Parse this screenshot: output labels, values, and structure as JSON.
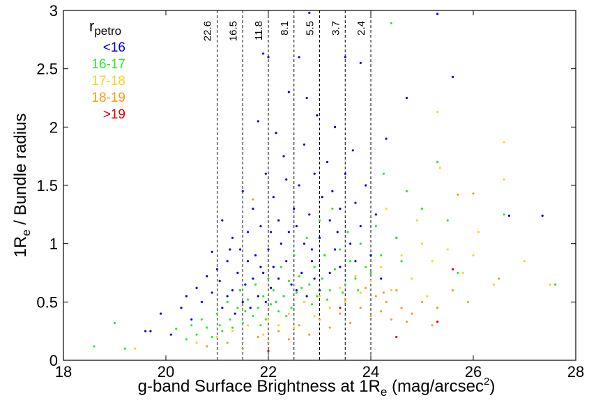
{
  "chart_data": {
    "type": "scatter",
    "title": "",
    "xlabel": {
      "prefix": "g-band Surface Brightness at 1R",
      "subscript": "e",
      "middle": " (mag/arcsec",
      "superscript": "2",
      "suffix": ")"
    },
    "ylabel": {
      "prefix": "1R",
      "subscript": "e",
      "suffix": " / Bundle radius"
    },
    "xlim": [
      18,
      28
    ],
    "ylim": [
      0,
      3
    ],
    "x_ticks": [
      18,
      20,
      22,
      24,
      26,
      28
    ],
    "x_tick_labels": [
      "18",
      "20",
      "22",
      "24",
      "26",
      "28"
    ],
    "y_ticks": [
      0,
      0.5,
      1,
      1.5,
      2,
      2.5,
      3
    ],
    "y_tick_labels": [
      "0",
      "0.5",
      "1",
      "1.5",
      "2",
      "2.5",
      "3"
    ],
    "grid": false,
    "legend": {
      "placement": "top-left",
      "title_main": "r",
      "title_sub": "petro",
      "entries": [
        {
          "label": "<16",
          "color": "#0000dd"
        },
        {
          "label": "16-17",
          "color": "#22ee22"
        },
        {
          "label": "17-18",
          "color": "#ffd21e"
        },
        {
          "label": "18-19",
          "color": "#ff9a14"
        },
        {
          "label": ">19",
          "color": "#dd0000"
        }
      ]
    },
    "vertical_lines": [
      {
        "x": 21.0,
        "label": "22.6"
      },
      {
        "x": 21.5,
        "label": "16.5"
      },
      {
        "x": 22.0,
        "label": "11.8"
      },
      {
        "x": 22.5,
        "label": "8.1"
      },
      {
        "x": 23.0,
        "label": "5.5"
      },
      {
        "x": 23.5,
        "label": "3.7"
      },
      {
        "x": 24.0,
        "label": "2.4"
      }
    ],
    "series": [
      {
        "name": "<16",
        "color": "#0000dd",
        "points": [
          [
            19.6,
            0.25
          ],
          [
            19.7,
            0.25
          ],
          [
            19.9,
            0.4
          ],
          [
            20.1,
            0.22
          ],
          [
            20.3,
            0.45
          ],
          [
            20.4,
            0.55
          ],
          [
            20.5,
            0.35
          ],
          [
            20.6,
            0.62
          ],
          [
            20.7,
            0.5
          ],
          [
            20.8,
            0.72
          ],
          [
            20.9,
            0.93
          ],
          [
            20.9,
            0.58
          ],
          [
            21.0,
            0.78
          ],
          [
            21.05,
            0.68
          ],
          [
            21.1,
            0.45
          ],
          [
            21.1,
            1.2
          ],
          [
            21.2,
            0.55
          ],
          [
            21.2,
            0.85
          ],
          [
            21.3,
            0.6
          ],
          [
            21.3,
            1.05
          ],
          [
            21.35,
            0.4
          ],
          [
            21.4,
            0.75
          ],
          [
            21.45,
            0.95
          ],
          [
            21.5,
            0.5
          ],
          [
            21.5,
            1.45
          ],
          [
            21.55,
            0.65
          ],
          [
            21.6,
            0.85
          ],
          [
            21.6,
            1.1
          ],
          [
            21.65,
            0.45
          ],
          [
            21.7,
            0.7
          ],
          [
            21.7,
            1.3
          ],
          [
            21.75,
            0.9
          ],
          [
            21.8,
            0.55
          ],
          [
            21.8,
            2.05
          ],
          [
            21.85,
            1.15
          ],
          [
            21.9,
            0.75
          ],
          [
            21.9,
            2.63
          ],
          [
            21.95,
            0.5
          ],
          [
            21.95,
            1.6
          ],
          [
            22.0,
            2.6
          ],
          [
            22.0,
            0.95
          ],
          [
            22.05,
            0.62
          ],
          [
            22.1,
            1.4
          ],
          [
            22.1,
            0.8
          ],
          [
            22.15,
            0.5
          ],
          [
            22.2,
            1.2
          ],
          [
            22.2,
            0.7
          ],
          [
            22.25,
            1.0
          ],
          [
            22.3,
            1.75
          ],
          [
            22.3,
            0.55
          ],
          [
            22.35,
            0.85
          ],
          [
            22.4,
            2.3
          ],
          [
            22.4,
            1.1
          ],
          [
            22.45,
            0.65
          ],
          [
            22.5,
            1.3
          ],
          [
            22.5,
            0.9
          ],
          [
            22.55,
            0.6
          ],
          [
            22.6,
            2.6
          ],
          [
            22.6,
            1.5
          ],
          [
            22.65,
            0.75
          ],
          [
            22.7,
            1.85
          ],
          [
            22.7,
            1.0
          ],
          [
            22.75,
            0.55
          ],
          [
            22.8,
            2.98
          ],
          [
            22.8,
            1.25
          ],
          [
            22.85,
            0.85
          ],
          [
            22.9,
            1.6
          ],
          [
            22.9,
            0.7
          ],
          [
            22.95,
            2.1
          ],
          [
            23.0,
            1.05
          ],
          [
            23.0,
            0.6
          ],
          [
            23.05,
            1.4
          ],
          [
            23.1,
            0.9
          ],
          [
            23.15,
            1.7
          ],
          [
            23.2,
            0.75
          ],
          [
            23.2,
            1.2
          ],
          [
            23.3,
            2.0
          ],
          [
            23.3,
            0.95
          ],
          [
            23.4,
            1.3
          ],
          [
            23.4,
            0.8
          ],
          [
            23.5,
            1.6
          ],
          [
            23.5,
            2.6
          ],
          [
            23.6,
            1.0
          ],
          [
            23.7,
            1.35
          ],
          [
            23.7,
            0.85
          ],
          [
            23.8,
            2.55
          ],
          [
            23.8,
            1.15
          ],
          [
            23.9,
            1.5
          ],
          [
            24.0,
            0.9
          ],
          [
            24.1,
            1.25
          ],
          [
            24.2,
            0.7
          ],
          [
            24.3,
            1.9
          ],
          [
            24.5,
            1.05
          ],
          [
            24.7,
            2.25
          ],
          [
            25.3,
            2.97
          ],
          [
            25.6,
            2.43
          ],
          [
            26.7,
            1.24
          ],
          [
            27.35,
            1.24
          ],
          [
            21.25,
            0.95
          ],
          [
            22.15,
            1.95
          ],
          [
            22.35,
            1.55
          ],
          [
            22.55,
            1.15
          ],
          [
            22.75,
            2.25
          ],
          [
            23.25,
            1.45
          ],
          [
            21.45,
            0.6
          ],
          [
            21.85,
            0.8
          ],
          [
            22.05,
            1.1
          ],
          [
            22.85,
            0.95
          ],
          [
            23.35,
            1.1
          ],
          [
            23.65,
            1.8
          ]
        ]
      },
      {
        "name": "16-17",
        "color": "#22ee22",
        "points": [
          [
            18.6,
            0.12
          ],
          [
            19.0,
            0.32
          ],
          [
            19.2,
            0.1
          ],
          [
            20.2,
            0.27
          ],
          [
            20.4,
            0.18
          ],
          [
            20.5,
            0.3
          ],
          [
            20.6,
            0.22
          ],
          [
            20.7,
            0.35
          ],
          [
            20.8,
            0.28
          ],
          [
            20.9,
            0.2
          ],
          [
            21.0,
            0.4
          ],
          [
            21.05,
            0.3
          ],
          [
            21.1,
            0.25
          ],
          [
            21.2,
            0.5
          ],
          [
            21.25,
            0.35
          ],
          [
            21.3,
            0.28
          ],
          [
            21.4,
            0.45
          ],
          [
            21.45,
            0.6
          ],
          [
            21.5,
            0.32
          ],
          [
            21.55,
            0.42
          ],
          [
            21.6,
            0.52
          ],
          [
            21.7,
            0.38
          ],
          [
            21.75,
            0.65
          ],
          [
            21.8,
            0.45
          ],
          [
            21.9,
            0.55
          ],
          [
            21.95,
            0.35
          ],
          [
            22.0,
            0.7
          ],
          [
            22.05,
            0.48
          ],
          [
            22.1,
            0.6
          ],
          [
            22.2,
            0.42
          ],
          [
            22.25,
            0.8
          ],
          [
            22.3,
            0.55
          ],
          [
            22.4,
            0.68
          ],
          [
            22.45,
            0.45
          ],
          [
            22.5,
            0.9
          ],
          [
            22.55,
            0.58
          ],
          [
            22.6,
            0.72
          ],
          [
            22.7,
            0.5
          ],
          [
            22.75,
            1.05
          ],
          [
            22.8,
            0.65
          ],
          [
            22.9,
            0.8
          ],
          [
            22.95,
            0.55
          ],
          [
            23.0,
            1.2
          ],
          [
            23.05,
            0.7
          ],
          [
            23.1,
            0.9
          ],
          [
            23.2,
            0.6
          ],
          [
            23.25,
            1.3
          ],
          [
            23.3,
            0.78
          ],
          [
            23.4,
            0.95
          ],
          [
            23.5,
            0.65
          ],
          [
            23.55,
            1.1
          ],
          [
            23.6,
            0.85
          ],
          [
            23.7,
            0.7
          ],
          [
            23.8,
            1.0
          ],
          [
            23.9,
            0.8
          ],
          [
            24.0,
            0.75
          ],
          [
            24.1,
            1.15
          ],
          [
            24.2,
            0.9
          ],
          [
            24.4,
            2.89
          ],
          [
            24.5,
            1.05
          ],
          [
            24.6,
            0.85
          ],
          [
            25.0,
            1.3
          ],
          [
            25.3,
            1.7
          ],
          [
            25.5,
            1.2
          ],
          [
            25.7,
            0.75
          ],
          [
            26.6,
            1.25
          ],
          [
            27.6,
            0.65
          ],
          [
            24.25,
            1.6
          ],
          [
            24.7,
            1.45
          ],
          [
            22.15,
            0.5
          ],
          [
            22.65,
            0.62
          ],
          [
            22.85,
            0.48
          ],
          [
            23.15,
            0.52
          ],
          [
            23.45,
            0.58
          ],
          [
            21.85,
            0.3
          ],
          [
            22.35,
            0.38
          ],
          [
            23.75,
            0.6
          ]
        ]
      },
      {
        "name": "17-18",
        "color": "#ffd21e",
        "points": [
          [
            19.4,
            0.1
          ],
          [
            20.6,
            0.15
          ],
          [
            21.0,
            0.2
          ],
          [
            21.3,
            0.25
          ],
          [
            21.6,
            0.3
          ],
          [
            21.9,
            0.22
          ],
          [
            22.0,
            0.35
          ],
          [
            22.2,
            0.3
          ],
          [
            22.4,
            0.4
          ],
          [
            22.5,
            0.28
          ],
          [
            22.7,
            0.5
          ],
          [
            22.9,
            0.38
          ],
          [
            23.0,
            0.55
          ],
          [
            23.2,
            0.45
          ],
          [
            23.4,
            0.62
          ],
          [
            23.5,
            0.5
          ],
          [
            23.7,
            0.72
          ],
          [
            23.8,
            0.58
          ],
          [
            24.0,
            0.68
          ],
          [
            24.2,
            0.8
          ],
          [
            24.4,
            0.6
          ],
          [
            24.6,
            0.9
          ],
          [
            24.8,
            0.7
          ],
          [
            25.0,
            1.0
          ],
          [
            25.2,
            0.85
          ],
          [
            25.3,
            2.13
          ],
          [
            25.35,
            1.65
          ],
          [
            25.5,
            0.95
          ],
          [
            25.8,
            0.75
          ],
          [
            26.1,
            1.1
          ],
          [
            26.4,
            0.65
          ],
          [
            26.6,
            1.87
          ],
          [
            26.6,
            1.55
          ],
          [
            27.0,
            0.85
          ],
          [
            27.5,
            0.65
          ],
          [
            24.3,
            1.3
          ],
          [
            24.9,
            1.2
          ],
          [
            25.1,
            0.55
          ],
          [
            25.6,
            0.6
          ],
          [
            26.0,
            0.9
          ]
        ]
      },
      {
        "name": "18-19",
        "color": "#ff9a14",
        "points": [
          [
            20.8,
            0.12
          ],
          [
            21.2,
            0.15
          ],
          [
            21.5,
            0.1
          ],
          [
            21.7,
            1.38
          ],
          [
            21.8,
            0.2
          ],
          [
            22.0,
            0.15
          ],
          [
            22.2,
            0.25
          ],
          [
            22.4,
            0.18
          ],
          [
            22.6,
            0.3
          ],
          [
            22.8,
            0.22
          ],
          [
            23.0,
            0.35
          ],
          [
            23.2,
            0.28
          ],
          [
            23.4,
            0.4
          ],
          [
            23.6,
            0.32
          ],
          [
            23.8,
            0.45
          ],
          [
            24.0,
            0.38
          ],
          [
            24.1,
            0.55
          ],
          [
            24.2,
            0.42
          ],
          [
            24.3,
            0.5
          ],
          [
            24.4,
            0.35
          ],
          [
            24.5,
            0.6
          ],
          [
            24.6,
            0.45
          ],
          [
            24.8,
            0.4
          ],
          [
            25.0,
            0.5
          ],
          [
            25.2,
            0.3
          ],
          [
            25.3,
            0.45
          ],
          [
            25.6,
            0.6
          ],
          [
            25.7,
            1.42
          ],
          [
            25.9,
            0.5
          ],
          [
            26.0,
            1.43
          ],
          [
            26.5,
            0.7
          ],
          [
            24.25,
            0.58
          ],
          [
            24.7,
            0.33
          ],
          [
            23.9,
            0.62
          ],
          [
            23.5,
            0.52
          ]
        ]
      },
      {
        "name": ">19",
        "color": "#dd0000",
        "points": [
          [
            22.0,
            0.08
          ],
          [
            23.4,
            0.45
          ],
          [
            24.5,
            0.2
          ],
          [
            25.3,
            0.33
          ],
          [
            25.6,
            0.78
          ]
        ]
      }
    ]
  }
}
